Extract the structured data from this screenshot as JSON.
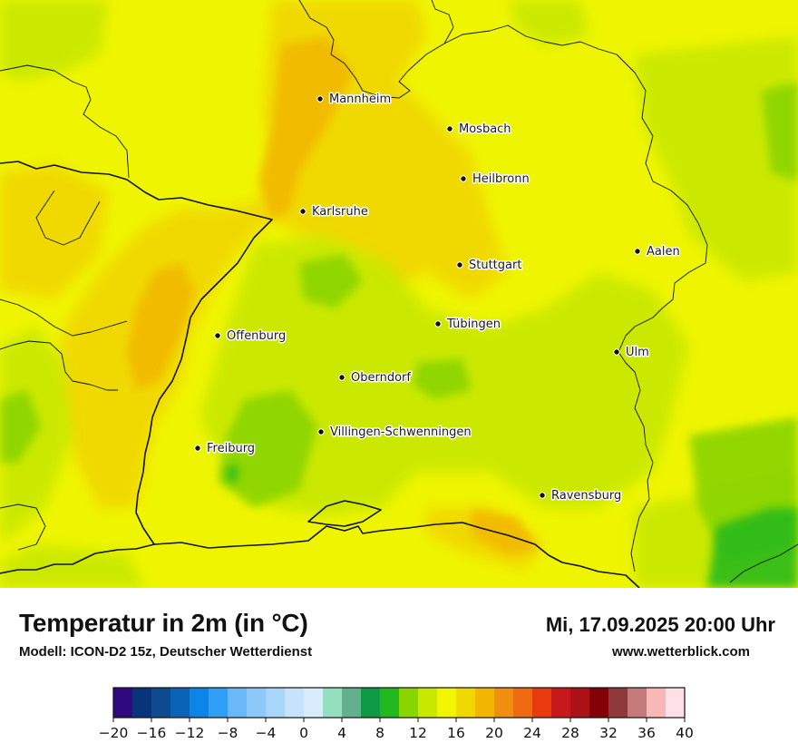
{
  "map": {
    "cities": [
      {
        "name": "Mannheim"
      },
      {
        "name": "Mosbach"
      },
      {
        "name": "Heilbronn"
      },
      {
        "name": "Karlsruhe"
      },
      {
        "name": "Aalen"
      },
      {
        "name": "Stuttgart"
      },
      {
        "name": "Tübingen"
      },
      {
        "name": "Offenburg"
      },
      {
        "name": "Ulm"
      },
      {
        "name": "Oberndorf"
      },
      {
        "name": "Villingen-Schwenningen"
      },
      {
        "name": "Freiburg"
      },
      {
        "name": "Ravensburg"
      }
    ]
  },
  "header": {
    "title": "Temperatur in 2m (in °C)",
    "model": "Modell: ICON-D2 15z, Deutscher Wetterdienst",
    "datetime": "Mi, 17.09.2025 20:00 Uhr",
    "site": "www.wetterblick.com"
  },
  "legend": {
    "min": -20,
    "max": 40,
    "step": 2,
    "ticks": [
      "−20",
      "−16",
      "−12",
      "−8",
      "−4",
      "0",
      "4",
      "8",
      "12",
      "16",
      "20",
      "24",
      "28",
      "32",
      "36",
      "40"
    ],
    "colors": [
      "#2f0a7e",
      "#08357a",
      "#0d4a8e",
      "#0b63b8",
      "#0c86e6",
      "#2f9ef6",
      "#6bb8f8",
      "#8ec8fa",
      "#a8d6fb",
      "#c6e2fc",
      "#d9ecfd",
      "#94dfc0",
      "#63b08e",
      "#0e9a44",
      "#22b81f",
      "#8ad400",
      "#c8e800",
      "#f2f500",
      "#f1d700",
      "#f2b600",
      "#f08e10",
      "#f06a12",
      "#e93a0e",
      "#c7181b",
      "#ab1117",
      "#820207",
      "#8f3a3a",
      "#c47a7a",
      "#f9b8b8",
      "#ffe0e6"
    ]
  }
}
